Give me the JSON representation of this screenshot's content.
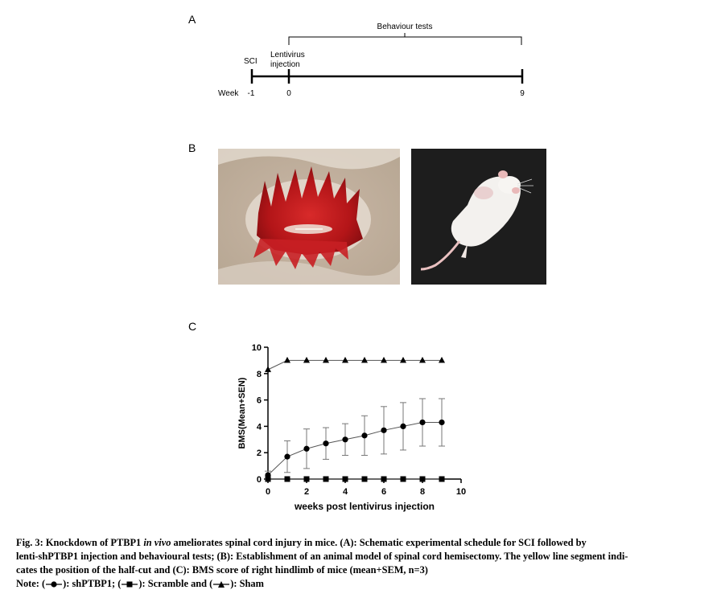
{
  "panels": {
    "a": "A",
    "b": "B",
    "c": "C"
  },
  "timeline": {
    "header": "Behaviour tests",
    "sci_label": "SCI",
    "lenti_label_1": "Lentivirus",
    "lenti_label_2": "injection",
    "week_label": "Week",
    "ticks": [
      "-1",
      "0",
      "9"
    ]
  },
  "photos": {
    "left": "spinal-cord-hemisection-photo",
    "right": "mouse-photo"
  },
  "chart_data": {
    "type": "line",
    "title": "",
    "xlabel": "weeks post lentivirus injection",
    "ylabel": "BMS(Mean+SEN)",
    "xlim": [
      0,
      10
    ],
    "ylim": [
      0,
      10
    ],
    "x_ticks": [
      "0",
      "2",
      "4",
      "6",
      "8",
      "10"
    ],
    "y_ticks": [
      "0",
      "2",
      "4",
      "6",
      "8",
      "10"
    ],
    "grid": false,
    "x": [
      0,
      1,
      2,
      3,
      4,
      5,
      6,
      7,
      8,
      9
    ],
    "series": [
      {
        "marker": "circle",
        "values": [
          0.3,
          1.7,
          2.3,
          2.7,
          3.0,
          3.3,
          3.7,
          4.0,
          4.3,
          4.3
        ],
        "error": [
          0.3,
          1.2,
          1.5,
          1.2,
          1.2,
          1.5,
          1.8,
          1.8,
          1.8,
          1.8
        ]
      },
      {
        "marker": "square",
        "values": [
          0,
          0,
          0,
          0,
          0,
          0,
          0,
          0,
          0,
          0
        ]
      },
      {
        "marker": "triangle",
        "values": [
          8.3,
          9,
          9,
          9,
          9,
          9,
          9,
          9,
          9,
          9
        ]
      }
    ]
  },
  "caption": {
    "line1_a": "Fig. 3: Knockdown of PTBP1 ",
    "line1_italic": "in vivo",
    "line1_b": " ameliorates spinal cord injury in mice. (A): Schematic experimental schedule for SCI followed by",
    "line2": "lenti-shPTBP1 injection and behavioural tests; (B): Establishment of an animal model of spinal cord hemisectomy. The yellow line segment indi-",
    "line3": "cates the position of the half-cut and (C): BMS score of right hindlimb of mice (mean+SEM, n=3)",
    "note_prefix": "Note: (",
    "note_1": "): shPTBP1; (",
    "note_2": "): Scramble and (",
    "note_3": "): Sham"
  }
}
